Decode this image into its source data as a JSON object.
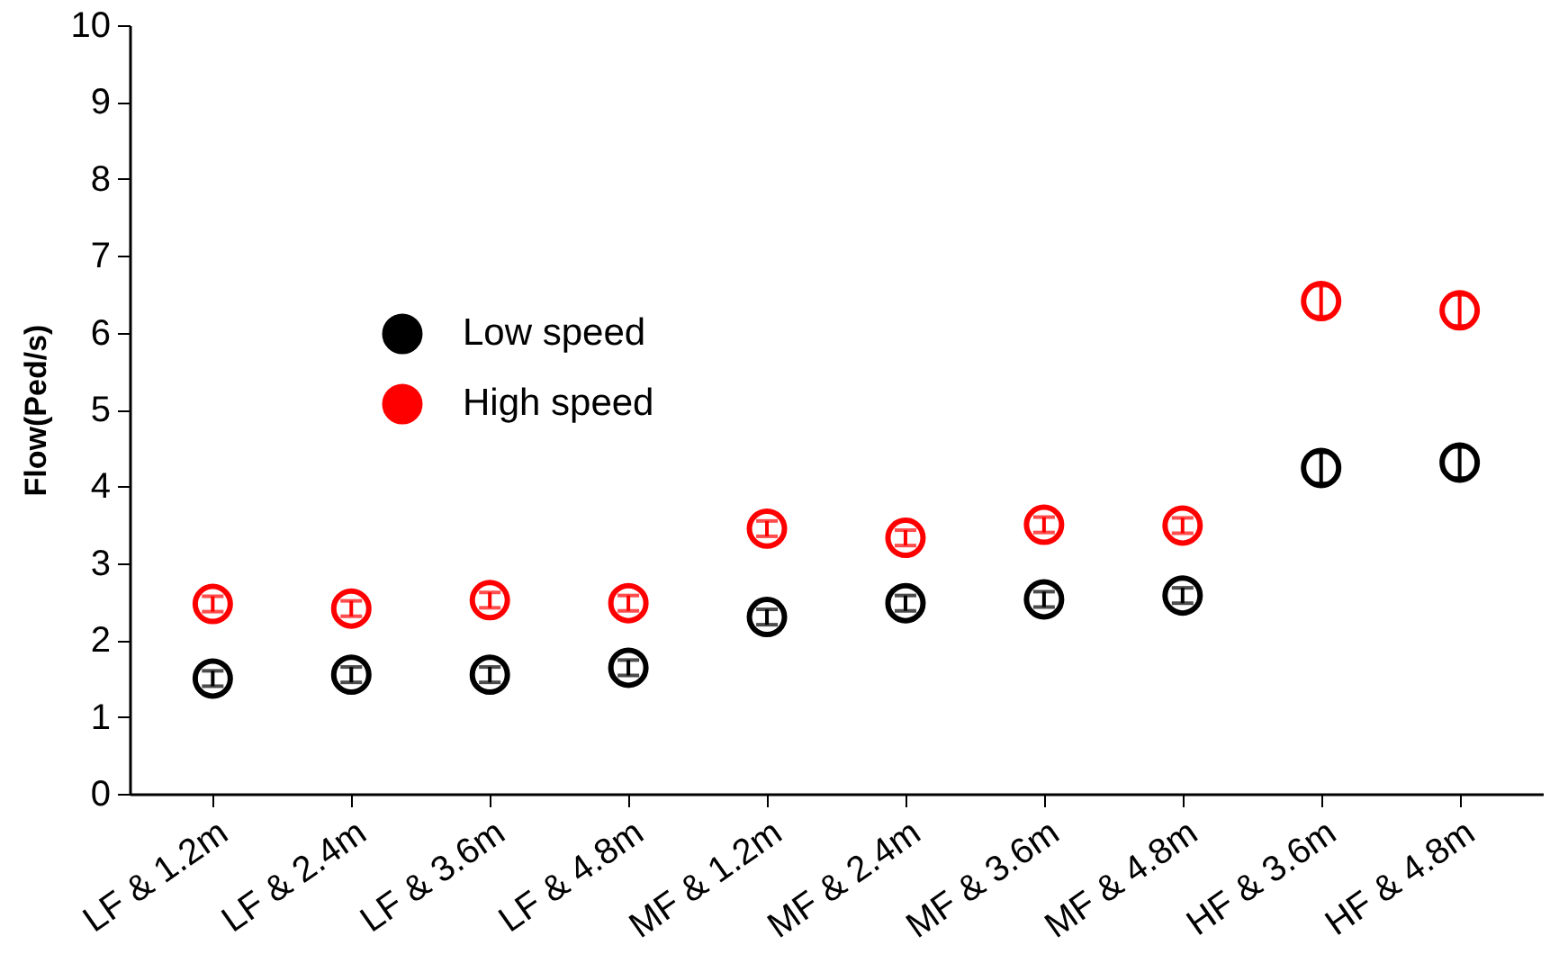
{
  "chart_data": {
    "type": "scatter",
    "ylabel": "Flow(Ped/s)",
    "categories": [
      "LF & 1.2m",
      "LF & 2.4m",
      "LF & 3.6m",
      "LF & 4.8m",
      "MF & 1.2m",
      "MF & 2.4m",
      "MF & 3.6m",
      "MF & 4.8m",
      "HF & 3.6m",
      "HF & 4.8m"
    ],
    "series": [
      {
        "name": "Low speed",
        "color": "#000000",
        "values": [
          1.5,
          1.55,
          1.55,
          1.64,
          2.3,
          2.48,
          2.53,
          2.58,
          4.24,
          4.31
        ],
        "errors": [
          0.1,
          0.1,
          0.1,
          0.1,
          0.1,
          0.1,
          0.1,
          0.1,
          0.2,
          0.2
        ]
      },
      {
        "name": "High speed",
        "color": "#ff0000",
        "values": [
          2.47,
          2.41,
          2.52,
          2.48,
          3.45,
          3.33,
          3.5,
          3.49,
          6.41,
          6.29
        ],
        "errors": [
          0.1,
          0.1,
          0.1,
          0.1,
          0.1,
          0.1,
          0.1,
          0.1,
          0.2,
          0.2
        ]
      }
    ],
    "ylim": [
      0,
      10
    ],
    "yticks": [
      0,
      1,
      2,
      3,
      4,
      5,
      6,
      7,
      8,
      9,
      10
    ],
    "marker": "circle",
    "legend": "top left",
    "grid": false
  }
}
